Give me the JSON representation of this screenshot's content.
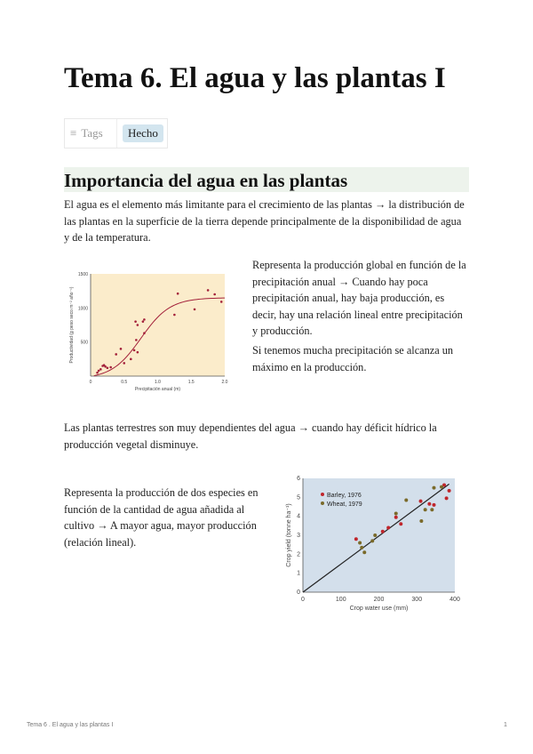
{
  "title": "Tema 6. El agua y las plantas I",
  "tags": {
    "label": "Tags",
    "icon": "list-icon",
    "value": "Hecho"
  },
  "section": {
    "heading": "Importancia del agua en las plantas"
  },
  "paragraphs": {
    "p1": "El agua es el elemento más limitante para el crecimiento de las plantas → la distribución de las plantas en la superficie de la tierra depende principalmente de la disponibilidad de agua y de la temperatura.",
    "p2": "Representa la producción global en función de la precipitación anual → Cuando hay poca precipitación anual, hay baja producción, es decir, hay una relación lineal entre precipitación y producción.",
    "p3": "Si tenemos mucha precipitación se alcanza un máximo en la producción.",
    "p4": "Las plantas terrestres son muy dependientes del agua → cuando hay déficit hídrico la producción vegetal disminuye.",
    "p5": "Representa la producción de dos especies en función de la cantidad de agua añadida al cultivo → A mayor agua, mayor producción (relación lineal)."
  },
  "footer": {
    "left": "Tema 6 . El agua y las plantas I",
    "page": "1"
  },
  "chart_data": [
    {
      "type": "scatter",
      "xlabel": "Precipitación anual (m)",
      "ylabel": "Productividad (g peso seco m⁻² año⁻¹)",
      "xlim": [
        0,
        2.0
      ],
      "ylim": [
        0,
        1500
      ],
      "xticks": [
        "0",
        "0.5",
        "1.0",
        "1.5",
        "2.0"
      ],
      "yticks": [
        "500",
        "1000",
        "1500"
      ],
      "background": "#fbeccb",
      "point_color": "#a3203a",
      "fit_curve": "sigmoid",
      "x": [
        0.1,
        0.12,
        0.15,
        0.18,
        0.2,
        0.22,
        0.25,
        0.3,
        0.38,
        0.45,
        0.5,
        0.6,
        0.65,
        0.67,
        0.68,
        0.7,
        0.7,
        0.78,
        0.8,
        0.8,
        1.25,
        1.3,
        1.55,
        1.75,
        1.85,
        1.95
      ],
      "y": [
        50,
        80,
        100,
        150,
        160,
        140,
        120,
        130,
        320,
        400,
        190,
        250,
        380,
        800,
        530,
        750,
        350,
        800,
        830,
        630,
        900,
        1210,
        980,
        1260,
        1200,
        1090
      ]
    },
    {
      "type": "scatter",
      "xlabel": "Crop water use (mm)",
      "ylabel": "Crop yield (tonne ha⁻¹)",
      "xlim": [
        0,
        400
      ],
      "ylim": [
        0,
        6
      ],
      "xticks": [
        "0",
        "100",
        "200",
        "300",
        "400"
      ],
      "yticks": [
        "0",
        "1",
        "2",
        "3",
        "4",
        "5",
        "6"
      ],
      "background": "#d3dfeb",
      "fit_line": [
        [
          0,
          0
        ],
        [
          385,
          5.7
        ]
      ],
      "series": [
        {
          "name": "Barley, 1976",
          "color": "#c0262c",
          "x": [
            140,
            210,
            225,
            245,
            258,
            310,
            333,
            345,
            372,
            378,
            385
          ],
          "y": [
            2.8,
            3.2,
            3.4,
            3.95,
            3.6,
            4.8,
            4.65,
            4.6,
            5.65,
            4.95,
            5.35
          ]
        },
        {
          "name": "Wheat, 1979",
          "color": "#7a6a2a",
          "x": [
            150,
            155,
            162,
            183,
            190,
            245,
            272,
            312,
            322,
            340,
            345,
            365
          ],
          "y": [
            2.6,
            2.35,
            2.1,
            2.7,
            3.0,
            4.15,
            4.85,
            3.75,
            4.35,
            4.35,
            5.5,
            5.55
          ]
        }
      ]
    }
  ]
}
